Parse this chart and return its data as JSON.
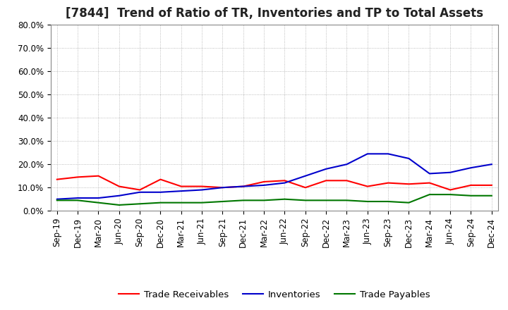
{
  "title": "[7844]  Trend of Ratio of TR, Inventories and TP to Total Assets",
  "x_labels": [
    "Sep-19",
    "Dec-19",
    "Mar-20",
    "Jun-20",
    "Sep-20",
    "Dec-20",
    "Mar-21",
    "Jun-21",
    "Sep-21",
    "Dec-21",
    "Mar-22",
    "Jun-22",
    "Sep-22",
    "Dec-22",
    "Mar-23",
    "Jun-23",
    "Sep-23",
    "Dec-23",
    "Mar-24",
    "Jun-24",
    "Sep-24",
    "Dec-24"
  ],
  "trade_receivables": [
    13.5,
    14.5,
    15.0,
    10.5,
    9.0,
    13.5,
    10.5,
    10.5,
    10.0,
    10.5,
    12.5,
    13.0,
    10.0,
    13.0,
    13.0,
    10.5,
    12.0,
    11.5,
    12.0,
    9.0,
    11.0,
    11.0
  ],
  "inventories": [
    5.0,
    5.5,
    5.5,
    6.5,
    8.0,
    8.0,
    8.5,
    9.0,
    10.0,
    10.5,
    11.0,
    12.0,
    15.0,
    18.0,
    20.0,
    24.5,
    24.5,
    22.5,
    16.0,
    16.5,
    18.5,
    20.0
  ],
  "trade_payables": [
    4.5,
    4.5,
    3.5,
    2.5,
    3.0,
    3.5,
    3.5,
    3.5,
    4.0,
    4.5,
    4.5,
    5.0,
    4.5,
    4.5,
    4.5,
    4.0,
    4.0,
    3.5,
    7.0,
    7.0,
    6.5,
    6.5
  ],
  "y_max": 80.0,
  "y_min": 0.0,
  "y_ticks": [
    0,
    10,
    20,
    30,
    40,
    50,
    60,
    70,
    80
  ],
  "line_colors": {
    "trade_receivables": "#ff0000",
    "inventories": "#0000cc",
    "trade_payables": "#007700"
  },
  "legend_labels": [
    "Trade Receivables",
    "Inventories",
    "Trade Payables"
  ],
  "background_color": "#ffffff",
  "plot_bg_color": "#ffffff",
  "grid_color": "#aaaaaa",
  "title_fontsize": 12,
  "axis_fontsize": 8.5,
  "legend_fontsize": 9.5
}
